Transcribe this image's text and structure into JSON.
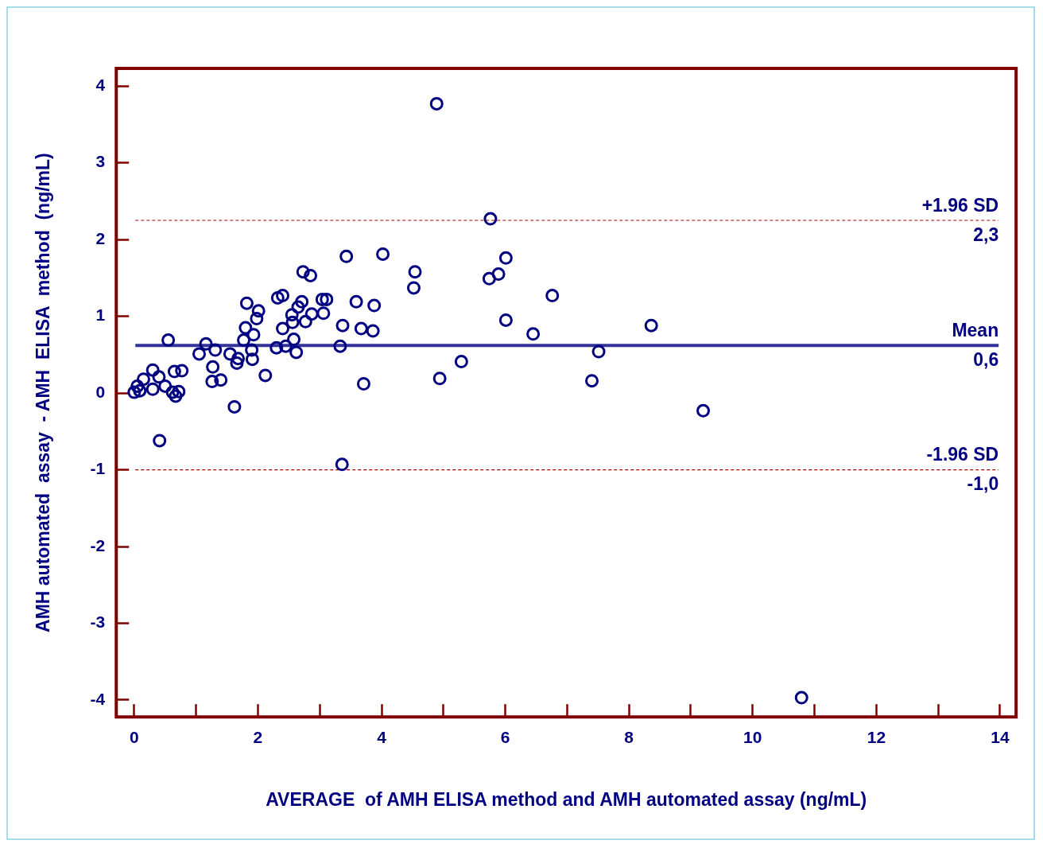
{
  "chart_data": {
    "type": "scatter",
    "xlabel": "AVERAGE  of AMH ELISA method and AMH automated assay (ng/mL)",
    "ylabel": "AMH automated  assay  - AMH  ELISA  method  (ng/mL)",
    "x": [
      0.0,
      0.09,
      0.05,
      0.15,
      0.3,
      0.4,
      0.3,
      0.5,
      0.41,
      0.55,
      0.65,
      0.62,
      0.67,
      0.72,
      0.77,
      1.05,
      1.16,
      1.27,
      1.26,
      1.31,
      1.4,
      1.55,
      1.62,
      1.66,
      1.68,
      1.77,
      1.8,
      1.82,
      1.9,
      1.91,
      1.93,
      1.98,
      2.01,
      2.12,
      2.3,
      2.32,
      2.4,
      2.4,
      2.45,
      2.55,
      2.56,
      2.58,
      2.62,
      2.65,
      2.71,
      2.73,
      2.77,
      2.85,
      2.87,
      3.04,
      3.06,
      3.11,
      3.33,
      3.37,
      3.36,
      3.43,
      3.59,
      3.67,
      3.71,
      3.86,
      3.88,
      4.02,
      4.52,
      4.54,
      4.89,
      4.94,
      5.29,
      5.74,
      5.76,
      5.89,
      6.01,
      6.01,
      6.45,
      6.76,
      7.4,
      7.51,
      8.36,
      9.2,
      10.79
    ],
    "series": [
      {
        "color": "#000080",
        "values": [
          0.01,
          0.03,
          0.09,
          0.18,
          0.3,
          0.21,
          0.05,
          0.09,
          -0.62,
          0.69,
          0.28,
          0.01,
          -0.04,
          0.02,
          0.29,
          0.51,
          0.64,
          0.34,
          0.15,
          0.56,
          0.17,
          0.51,
          -0.18,
          0.39,
          0.45,
          0.69,
          0.85,
          1.17,
          0.56,
          0.44,
          0.76,
          0.97,
          1.07,
          0.23,
          0.59,
          1.24,
          0.84,
          1.27,
          0.61,
          1.02,
          0.92,
          0.7,
          0.53,
          1.12,
          1.19,
          1.58,
          0.93,
          1.53,
          1.03,
          1.22,
          1.04,
          1.22,
          0.61,
          0.88,
          -0.93,
          1.78,
          1.19,
          0.84,
          0.12,
          0.81,
          1.14,
          1.81,
          1.37,
          1.58,
          3.77,
          0.19,
          0.41,
          1.49,
          2.27,
          1.55,
          1.76,
          0.95,
          0.77,
          1.27,
          0.16,
          0.54,
          0.88,
          -0.23,
          -3.97
        ]
      }
    ],
    "marker": "circle",
    "xlim": [
      -0.29,
      14.26
    ],
    "ylim": [
      -4.22,
      4.23
    ],
    "xticks": [
      0,
      {
        "value": 1,
        "label": null
      },
      2,
      {
        "value": 3,
        "label": null
      },
      4,
      {
        "value": 5,
        "label": null
      },
      6,
      {
        "value": 7,
        "label": null
      },
      8,
      {
        "value": 9,
        "label": null
      },
      10,
      {
        "value": 11,
        "label": null
      },
      12,
      {
        "value": 13,
        "label": null
      },
      14
    ],
    "yticks": [
      -4,
      -3,
      -2,
      -1,
      0,
      1,
      2,
      3,
      4
    ],
    "ref_lines": [
      {
        "axis": "y",
        "value": 2.25,
        "label": "+1.96 SD",
        "color": "#aa0000",
        "line_style": "dashed"
      },
      {
        "axis": "y",
        "value": 0.62,
        "label": "Mean",
        "color": "#333399",
        "line_style": "solid"
      },
      {
        "axis": "y",
        "value": -1.0,
        "label": "-1.96 SD",
        "color": "#aa0000",
        "line_style": "dashed"
      }
    ],
    "annotations": [
      {
        "text": "2,3",
        "y": 2.25
      },
      {
        "text": "0,6",
        "y": 0.62
      },
      {
        "text": "-1,0",
        "y": -1.0
      }
    ],
    "grid": false,
    "legend": false
  }
}
